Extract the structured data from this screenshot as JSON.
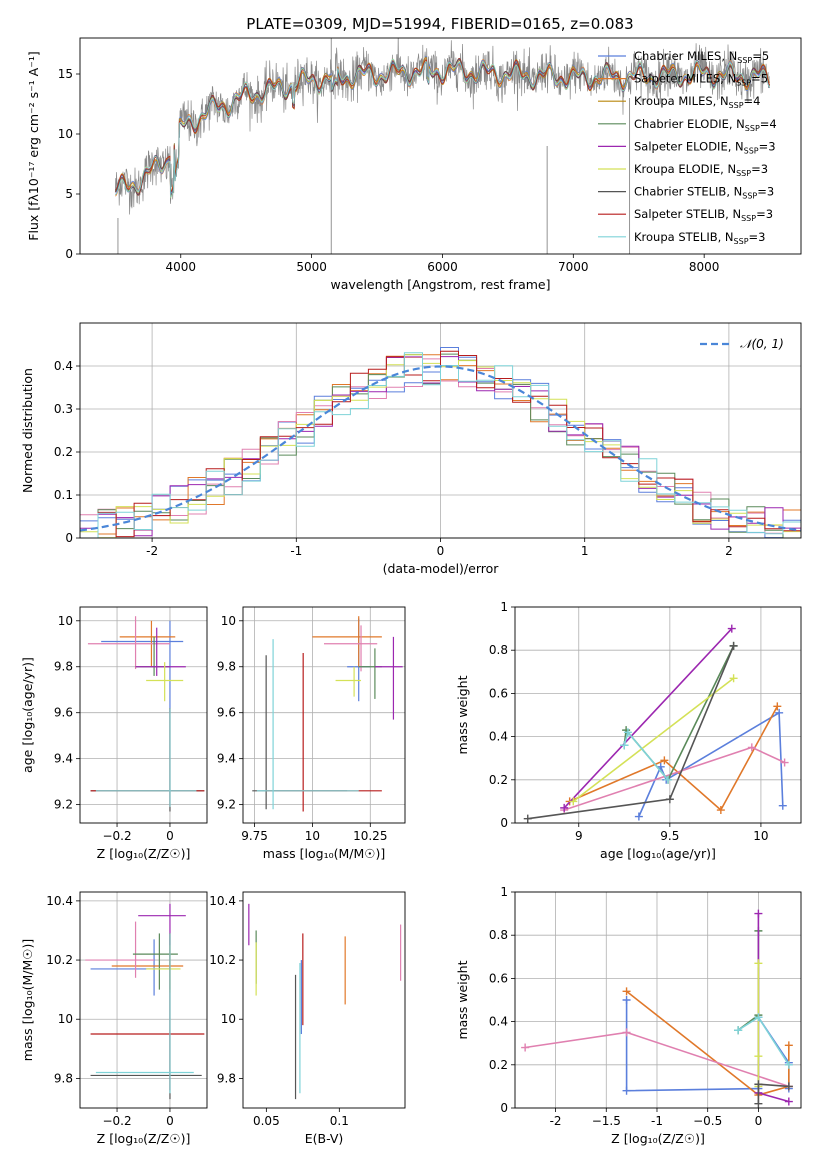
{
  "figure": {
    "title": "PLATE=0309, MJD=51994, FIBERID=0165, z=0.083"
  },
  "colors": {
    "Chabrier MILES": "#5b7fdc",
    "Salpeter MILES": "#e0782a",
    "Kroupa MILES": "#b8860b",
    "Chabrier ELODIE": "#5a8a5a",
    "Salpeter ELODIE": "#9c27b0",
    "Kroupa ELODIE": "#d4e157",
    "Chabrier STELIB": "#555555",
    "Salpeter STELIB": "#b71c1c",
    "Kroupa STELIB": "#7fd3d8",
    "pink": "#e080b0"
  },
  "chart_data": [
    {
      "id": "spectrum",
      "type": "line",
      "xlabel": "wavelength [Angstrom, rest frame]",
      "ylabel": "Flux [fλ10⁻¹⁷ erg cm⁻² s⁻¹ A⁻¹]",
      "xlim": [
        3230,
        8740
      ],
      "ylim": [
        0,
        18
      ],
      "xticks": [
        4000,
        5000,
        6000,
        7000,
        8000
      ],
      "yticks": [
        0,
        5,
        10,
        15
      ],
      "grid": false,
      "legend_position": "right",
      "legend": [
        {
          "label": "Chabrier MILES, N",
          "sub": "SSP",
          "n": "=5",
          "series": "Chabrier MILES"
        },
        {
          "label": "Salpeter MILES, N",
          "sub": "SSP",
          "n": "=5",
          "series": "Salpeter MILES"
        },
        {
          "label": "Kroupa MILES, N",
          "sub": "SSP",
          "n": "=4",
          "series": "Kroupa MILES"
        },
        {
          "label": "Chabrier ELODIE, N",
          "sub": "SSP",
          "n": "=4",
          "series": "Chabrier ELODIE"
        },
        {
          "label": "Salpeter ELODIE, N",
          "sub": "SSP",
          "n": "=3",
          "series": "Salpeter ELODIE"
        },
        {
          "label": "Kroupa ELODIE, N",
          "sub": "SSP",
          "n": "=3",
          "series": "Kroupa ELODIE"
        },
        {
          "label": "Chabrier STELIB, N",
          "sub": "SSP",
          "n": "=3",
          "series": "Chabrier STELIB"
        },
        {
          "label": "Salpeter STELIB, N",
          "sub": "SSP",
          "n": "=3",
          "series": "Salpeter STELIB"
        },
        {
          "label": "Kroupa STELIB, N",
          "sub": "SSP",
          "n": "=3",
          "series": "Kroupa STELIB"
        }
      ],
      "continuum": [
        [
          3500,
          5.2
        ],
        [
          3700,
          6.2
        ],
        [
          3900,
          8.0
        ],
        [
          4000,
          10.5
        ],
        [
          4200,
          11.8
        ],
        [
          4500,
          13.2
        ],
        [
          5000,
          14.5
        ],
        [
          5500,
          15.0
        ],
        [
          6000,
          15.3
        ],
        [
          6500,
          15.0
        ],
        [
          7000,
          14.7
        ],
        [
          7500,
          14.8
        ],
        [
          8000,
          15.0
        ],
        [
          8500,
          14.7
        ]
      ]
    },
    {
      "id": "residuals",
      "type": "step",
      "xlabel": "(data-model)/error",
      "ylabel": "Normed distribution",
      "xlim": [
        -2.5,
        2.5
      ],
      "ylim": [
        0,
        0.5
      ],
      "xticks": [
        -2,
        -1,
        0,
        1,
        2
      ],
      "yticks": [
        0.0,
        0.1,
        0.2,
        0.3,
        0.4
      ],
      "grid": true,
      "legend_position": "top-right",
      "legend_label": "𝒩(0, 1)",
      "normal_mean": 0,
      "normal_std": 1
    },
    {
      "id": "age-vs-Z",
      "type": "errorbar",
      "xlabel": "Z [log₁₀(Z/Z☉)]",
      "ylabel": "age  [log₁₀(age/yr)]",
      "xlim": [
        -0.34,
        0.14
      ],
      "ylim": [
        9.12,
        10.06
      ],
      "xticks": [
        -0.2,
        0.0
      ],
      "yticks": [
        9.2,
        9.4,
        9.6,
        9.8,
        10.0
      ],
      "grid": true,
      "points": [
        {
          "s": "Chabrier MILES",
          "x": 0.0,
          "y": 9.91,
          "xlo": -0.26,
          "xhi": 0.05,
          "ylo": 9.6,
          "yhi": 10.0
        },
        {
          "s": "Salpeter MILES",
          "x": -0.07,
          "y": 9.93,
          "xlo": -0.19,
          "xhi": 0.02,
          "ylo": 9.8,
          "yhi": 10.0
        },
        {
          "s": "pink",
          "x": -0.13,
          "y": 9.9,
          "xlo": -0.31,
          "xhi": 0.0,
          "ylo": 9.79,
          "yhi": 10.02
        },
        {
          "s": "Chabrier ELODIE",
          "x": -0.06,
          "y": 9.8,
          "xlo": -0.13,
          "xhi": 0.0,
          "ylo": 9.76,
          "yhi": 9.93
        },
        {
          "s": "Salpeter ELODIE",
          "x": -0.05,
          "y": 9.8,
          "xlo": -0.13,
          "xhi": 0.06,
          "ylo": 9.76,
          "yhi": 9.97
        },
        {
          "s": "Kroupa ELODIE",
          "x": -0.02,
          "y": 9.74,
          "xlo": -0.09,
          "xhi": 0.05,
          "ylo": 9.65,
          "yhi": 9.82
        },
        {
          "s": "Chabrier STELIB",
          "x": 0.0,
          "y": 9.26,
          "xlo": -0.3,
          "xhi": 0.13,
          "ylo": 9.17,
          "yhi": 9.62
        },
        {
          "s": "Salpeter STELIB",
          "x": 0.0,
          "y": 9.26,
          "xlo": -0.3,
          "xhi": 0.13,
          "ylo": 9.19,
          "yhi": 9.62
        },
        {
          "s": "Kroupa STELIB",
          "x": 0.0,
          "y": 9.26,
          "xlo": -0.28,
          "xhi": 0.1,
          "ylo": 9.19,
          "yhi": 9.62
        }
      ]
    },
    {
      "id": "age-vs-mass",
      "type": "errorbar",
      "xlabel": "mass [log₁₀(M/M☉)]",
      "ylabel": "",
      "xlim": [
        9.7,
        10.4
      ],
      "ylim": [
        9.12,
        10.06
      ],
      "xticks": [
        9.75,
        10.0,
        10.25
      ],
      "yticks": [
        9.2,
        9.4,
        9.6,
        9.8,
        10.0
      ],
      "grid": true,
      "points": [
        {
          "s": "Chabrier MILES",
          "x": 10.2,
          "y": 9.8,
          "xlo": 10.15,
          "xhi": 10.25,
          "ylo": 9.65,
          "yhi": 10.01
        },
        {
          "s": "Salpeter MILES",
          "x": 10.2,
          "y": 9.93,
          "xlo": 10.0,
          "xhi": 10.3,
          "ylo": 9.8,
          "yhi": 10.02
        },
        {
          "s": "pink",
          "x": 10.21,
          "y": 9.9,
          "xlo": 10.05,
          "xhi": 10.28,
          "ylo": 9.78,
          "yhi": 9.98
        },
        {
          "s": "Chabrier ELODIE",
          "x": 10.27,
          "y": 9.8,
          "xlo": 10.2,
          "xhi": 10.3,
          "ylo": 9.66,
          "yhi": 9.88
        },
        {
          "s": "Salpeter ELODIE",
          "x": 10.35,
          "y": 9.8,
          "xlo": 10.27,
          "xhi": 10.39,
          "ylo": 9.57,
          "yhi": 9.93
        },
        {
          "s": "Kroupa ELODIE",
          "x": 10.18,
          "y": 9.74,
          "xlo": 10.1,
          "xhi": 10.21,
          "ylo": 9.67,
          "yhi": 9.8
        },
        {
          "s": "Chabrier STELIB",
          "x": 9.8,
          "y": 9.26,
          "xlo": 9.74,
          "xhi": 10.15,
          "ylo": 9.18,
          "yhi": 9.85
        },
        {
          "s": "Salpeter STELIB",
          "x": 9.96,
          "y": 9.26,
          "xlo": 9.8,
          "xhi": 10.3,
          "ylo": 9.17,
          "yhi": 9.86
        },
        {
          "s": "Kroupa STELIB",
          "x": 9.83,
          "y": 9.26,
          "xlo": 9.76,
          "xhi": 10.2,
          "ylo": 9.18,
          "yhi": 9.92
        }
      ]
    },
    {
      "id": "weight-vs-age",
      "type": "line",
      "xlabel": "age  [log₁₀(age/yr)]",
      "ylabel": "mass weight",
      "xlim": [
        8.65,
        10.22
      ],
      "ylim": [
        0,
        1.0
      ],
      "xticks": [
        9.0,
        9.5,
        10.0
      ],
      "yticks": [
        0.0,
        0.2,
        0.4,
        0.6,
        0.8,
        1.0
      ],
      "grid": true,
      "series": [
        {
          "s": "Chabrier MILES",
          "x": [
            9.33,
            9.45,
            9.48,
            10.1,
            10.12
          ],
          "y": [
            0.03,
            0.26,
            0.2,
            0.51,
            0.08
          ]
        },
        {
          "s": "Salpeter MILES",
          "x": [
            8.95,
            9.47,
            9.78,
            10.09
          ],
          "y": [
            0.1,
            0.29,
            0.06,
            0.54
          ]
        },
        {
          "s": "pink",
          "x": [
            8.92,
            9.95,
            10.13
          ],
          "y": [
            0.06,
            0.35,
            0.28
          ]
        },
        {
          "s": "Chabrier ELODIE",
          "x": [
            9.25,
            9.26,
            9.49,
            9.85
          ],
          "y": [
            0.36,
            0.43,
            0.2,
            0.82
          ]
        },
        {
          "s": "Salpeter ELODIE",
          "x": [
            8.92,
            9.84
          ],
          "y": [
            0.07,
            0.9
          ]
        },
        {
          "s": "Kroupa ELODIE",
          "x": [
            8.97,
            9.85
          ],
          "y": [
            0.1,
            0.67
          ]
        },
        {
          "s": "Chabrier STELIB",
          "x": [
            8.72,
            9.5,
            9.85
          ],
          "y": [
            0.02,
            0.11,
            0.82
          ]
        },
        {
          "s": "Kroupa STELIB",
          "x": [
            9.25,
            9.27,
            9.49
          ],
          "y": [
            0.36,
            0.42,
            0.2
          ]
        }
      ]
    },
    {
      "id": "mass-vs-Z",
      "type": "errorbar",
      "xlabel": "Z [log₁₀(Z/Z☉)]",
      "ylabel": "mass [log₁₀(M/M☉)]",
      "xlim": [
        -0.34,
        0.14
      ],
      "ylim": [
        9.7,
        10.43
      ],
      "xticks": [
        -0.2,
        0.0
      ],
      "yticks": [
        9.8,
        10.0,
        10.2,
        10.4
      ],
      "grid": true,
      "points": [
        {
          "s": "Chabrier MILES",
          "x": -0.06,
          "y": 10.17,
          "xlo": -0.3,
          "xhi": 0.0,
          "ylo": 10.08,
          "yhi": 10.27
        },
        {
          "s": "Salpeter MILES",
          "x": 0.0,
          "y": 10.18,
          "xlo": -0.22,
          "xhi": 0.05,
          "ylo": 10.1,
          "yhi": 10.29
        },
        {
          "s": "pink",
          "x": -0.13,
          "y": 10.2,
          "xlo": -0.32,
          "xhi": -0.06,
          "ylo": 10.14,
          "yhi": 10.33
        },
        {
          "s": "Chabrier ELODIE",
          "x": -0.04,
          "y": 10.22,
          "xlo": -0.14,
          "xhi": 0.03,
          "ylo": 10.1,
          "yhi": 10.29
        },
        {
          "s": "Salpeter ELODIE",
          "x": 0.0,
          "y": 10.35,
          "xlo": -0.12,
          "xhi": 0.06,
          "ylo": 10.25,
          "yhi": 10.39
        },
        {
          "s": "Kroupa ELODIE",
          "x": 0.0,
          "y": 10.17,
          "xlo": -0.09,
          "xhi": 0.04,
          "ylo": 10.09,
          "yhi": 10.25
        },
        {
          "s": "Chabrier STELIB",
          "x": 0.0,
          "y": 9.81,
          "xlo": -0.3,
          "xhi": 0.12,
          "ylo": 9.73,
          "yhi": 10.29
        },
        {
          "s": "Salpeter STELIB",
          "x": 0.0,
          "y": 9.95,
          "xlo": -0.3,
          "xhi": 0.13,
          "ylo": 9.76,
          "yhi": 10.29
        },
        {
          "s": "Kroupa STELIB",
          "x": 0.0,
          "y": 9.82,
          "xlo": -0.28,
          "xhi": 0.09,
          "ylo": 9.75,
          "yhi": 10.29
        }
      ]
    },
    {
      "id": "mass-vs-ebv",
      "type": "errorbar",
      "xlabel": "E(B-V)",
      "ylabel": "",
      "xlim": [
        0.034,
        0.145
      ],
      "ylim": [
        9.7,
        10.43
      ],
      "xticks": [
        0.05,
        0.1
      ],
      "yticks": [
        9.8,
        10.0,
        10.2,
        10.4
      ],
      "grid": false,
      "points": [
        {
          "s": "Chabrier MILES",
          "x": 0.074,
          "y": 10.14,
          "ylo": 9.95,
          "yhi": 10.2
        },
        {
          "s": "Salpeter MILES",
          "x": 0.104,
          "y": 10.2,
          "ylo": 10.05,
          "yhi": 10.28
        },
        {
          "s": "pink",
          "x": 0.142,
          "y": 10.22,
          "ylo": 10.13,
          "yhi": 10.32
        },
        {
          "s": "Chabrier ELODIE",
          "x": 0.043,
          "y": 10.2,
          "ylo": 10.12,
          "yhi": 10.3
        },
        {
          "s": "Salpeter ELODIE",
          "x": 0.038,
          "y": 10.31,
          "ylo": 10.25,
          "yhi": 10.39
        },
        {
          "s": "Kroupa ELODIE",
          "x": 0.043,
          "y": 10.17,
          "ylo": 10.08,
          "yhi": 10.26
        },
        {
          "s": "Chabrier STELIB",
          "x": 0.07,
          "y": 9.94,
          "ylo": 9.73,
          "yhi": 10.15
        },
        {
          "s": "Salpeter STELIB",
          "x": 0.075,
          "y": 10.1,
          "ylo": 9.98,
          "yhi": 10.29
        },
        {
          "s": "Kroupa STELIB",
          "x": 0.073,
          "y": 9.92,
          "ylo": 9.75,
          "yhi": 10.19
        }
      ]
    },
    {
      "id": "weight-vs-Z",
      "type": "line",
      "xlabel": "Z [log₁₀(Z/Z☉)]",
      "ylabel": "mass weight",
      "xlim": [
        -2.4,
        0.42
      ],
      "ylim": [
        0,
        1.0
      ],
      "xticks": [
        -2.0,
        -1.5,
        -1.0,
        -0.5,
        0.0
      ],
      "yticks": [
        0.0,
        0.2,
        0.4,
        0.6,
        0.8,
        1.0
      ],
      "grid": true,
      "series": [
        {
          "s": "Chabrier MILES",
          "x": [
            -1.3,
            -1.3,
            0.0,
            0.0,
            0.3,
            0.3
          ],
          "y": [
            0.5,
            0.08,
            0.09,
            0.42,
            0.21,
            0.09
          ]
        },
        {
          "s": "Salpeter MILES",
          "x": [
            -1.3,
            0.0,
            0.3,
            0.3
          ],
          "y": [
            0.54,
            0.06,
            0.1,
            0.29
          ]
        },
        {
          "s": "pink",
          "x": [
            -2.3,
            -1.3,
            0.3
          ],
          "y": [
            0.28,
            0.35,
            0.1
          ]
        },
        {
          "s": "Chabrier ELODIE",
          "x": [
            -0.2,
            0.0,
            0.0
          ],
          "y": [
            0.36,
            0.43,
            0.82
          ]
        },
        {
          "s": "Salpeter ELODIE",
          "x": [
            0.0,
            0.0,
            0.3
          ],
          "y": [
            0.9,
            0.07,
            0.03
          ]
        },
        {
          "s": "Kroupa ELODIE",
          "x": [
            0.0,
            0.0,
            0.0
          ],
          "y": [
            0.67,
            0.24,
            0.1
          ]
        },
        {
          "s": "Chabrier STELIB",
          "x": [
            0.0,
            0.0,
            0.3
          ],
          "y": [
            0.02,
            0.11,
            0.1
          ]
        },
        {
          "s": "Kroupa STELIB",
          "x": [
            -0.2,
            0.0,
            0.3
          ],
          "y": [
            0.36,
            0.42,
            0.2
          ]
        }
      ]
    }
  ]
}
